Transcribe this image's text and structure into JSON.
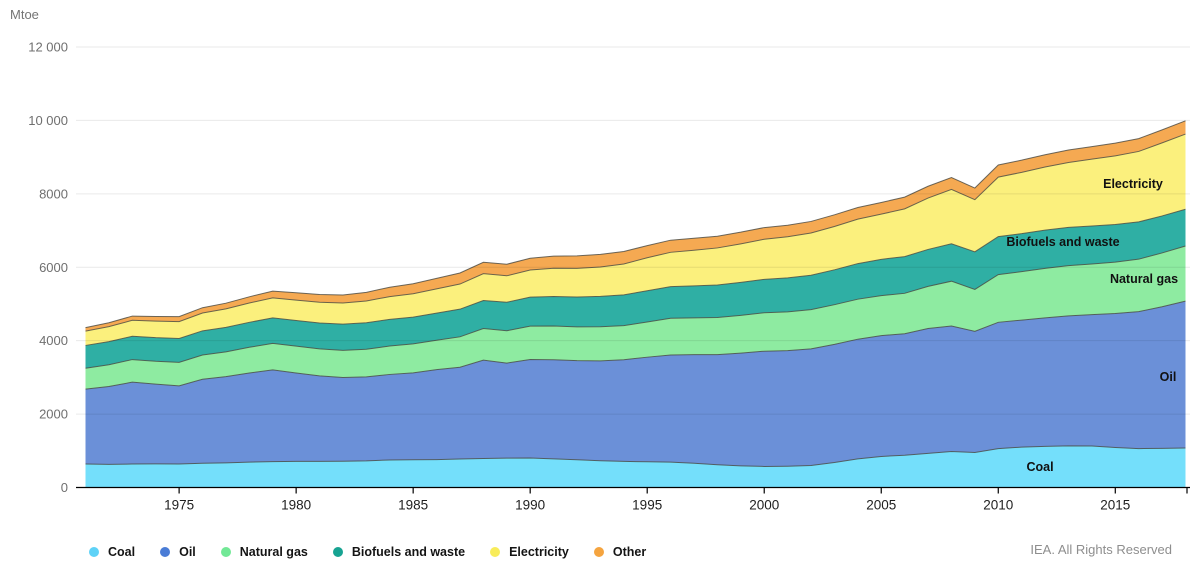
{
  "page": {
    "unit_label": "Mtoe",
    "copyright": "IEA. All Rights Reserved"
  },
  "legend": {
    "items": [
      {
        "label": "Coal",
        "color": "#5ED2F7"
      },
      {
        "label": "Oil",
        "color": "#4A7CD6"
      },
      {
        "label": "Natural gas",
        "color": "#72E896"
      },
      {
        "label": "Biofuels and waste",
        "color": "#17A392"
      },
      {
        "label": "Electricity",
        "color": "#F8EC5A"
      },
      {
        "label": "Other",
        "color": "#F5A43F"
      }
    ]
  },
  "chart_data": {
    "type": "area",
    "stacked": true,
    "title": "",
    "xlabel": "",
    "ylabel": "Mtoe",
    "ylim": [
      0,
      12000
    ],
    "grid": "horizontal",
    "legend_position": "bottom",
    "yticks": [
      0,
      2000,
      4000,
      6000,
      8000,
      10000,
      12000
    ],
    "ytick_labels": [
      "0",
      "2000",
      "4000",
      "6000",
      "8000",
      "10 000",
      "12 000"
    ],
    "xticks": [
      1975,
      1980,
      1985,
      1990,
      1995,
      2000,
      2005,
      2010,
      2015
    ],
    "x": [
      1971,
      1972,
      1973,
      1974,
      1975,
      1976,
      1977,
      1978,
      1979,
      1980,
      1981,
      1982,
      1983,
      1984,
      1985,
      1986,
      1987,
      1988,
      1989,
      1990,
      1991,
      1992,
      1993,
      1994,
      1995,
      1996,
      1997,
      1998,
      1999,
      2000,
      2001,
      2002,
      2003,
      2004,
      2005,
      2006,
      2007,
      2008,
      2009,
      2010,
      2011,
      2012,
      2013,
      2014,
      2015,
      2016,
      2017,
      2018
    ],
    "series": [
      {
        "name": "Coal",
        "color": "#74DFFB",
        "values": [
          640,
          630,
          640,
          645,
          640,
          660,
          670,
          690,
          705,
          710,
          710,
          715,
          725,
          750,
          756,
          760,
          775,
          790,
          800,
          802,
          780,
          755,
          730,
          710,
          700,
          690,
          660,
          620,
          590,
          573,
          580,
          600,
          680,
          780,
          846,
          880,
          930,
          980,
          955,
          1060,
          1100,
          1120,
          1135,
          1130,
          1090,
          1060,
          1065,
          1076
        ]
      },
      {
        "name": "Oil",
        "color": "#6B90D8",
        "values": [
          2040,
          2120,
          2230,
          2170,
          2130,
          2290,
          2350,
          2430,
          2500,
          2410,
          2330,
          2280,
          2290,
          2330,
          2366,
          2450,
          2500,
          2680,
          2590,
          2684,
          2700,
          2700,
          2720,
          2770,
          2850,
          2920,
          2960,
          3000,
          3070,
          3140,
          3150,
          3175,
          3220,
          3260,
          3290,
          3310,
          3400,
          3420,
          3300,
          3440,
          3460,
          3500,
          3540,
          3580,
          3650,
          3730,
          3860,
          4002
        ]
      },
      {
        "name": "Natural gas",
        "color": "#8EEBA1",
        "values": [
          570,
          595,
          615,
          625,
          640,
          660,
          675,
          700,
          720,
          730,
          735,
          740,
          750,
          775,
          790,
          800,
          830,
          860,
          880,
          909,
          920,
          920,
          930,
          930,
          960,
          1000,
          1000,
          1010,
          1030,
          1048,
          1055,
          1070,
          1080,
          1090,
          1090,
          1100,
          1150,
          1220,
          1140,
          1300,
          1320,
          1350,
          1370,
          1380,
          1400,
          1430,
          1465,
          1501
        ]
      },
      {
        "name": "Biofuels and waste",
        "color": "#2FAFA4",
        "values": [
          620,
          628,
          635,
          642,
          650,
          658,
          666,
          680,
          695,
          700,
          707,
          715,
          722,
          726,
          729,
          741,
          753,
          765,
          777,
          790,
          802,
          814,
          826,
          838,
          850,
          862,
          874,
          886,
          898,
          910,
          925,
          938,
          950,
          970,
          990,
          1000,
          1005,
          1020,
          1025,
          1035,
          1035,
          1040,
          1040,
          1035,
          1025,
          1015,
          1008,
          1002
        ]
      },
      {
        "name": "Electricity",
        "color": "#FBF07D",
        "values": [
          390,
          410,
          435,
          450,
          460,
          485,
          505,
          525,
          545,
          555,
          565,
          575,
          595,
          620,
          636,
          660,
          685,
          730,
          720,
          740,
          770,
          780,
          800,
          840,
          900,
          935,
          970,
          1010,
          1050,
          1092,
          1120,
          1150,
          1180,
          1210,
          1230,
          1300,
          1400,
          1480,
          1420,
          1620,
          1670,
          1720,
          1770,
          1820,
          1870,
          1920,
          1990,
          2048
        ]
      },
      {
        "name": "Other",
        "color": "#F5A952",
        "values": [
          95,
          105,
          115,
          125,
          135,
          145,
          155,
          170,
          185,
          200,
          210,
          220,
          235,
          255,
          273,
          285,
          300,
          310,
          315,
          320,
          330,
          340,
          345,
          340,
          330,
          330,
          325,
          320,
          318,
          318,
          315,
          315,
          318,
          318,
          319,
          320,
          322,
          325,
          318,
          330,
          332,
          335,
          338,
          340,
          345,
          350,
          355,
          361
        ]
      }
    ],
    "inline_labels": [
      {
        "text": "Electricity"
      },
      {
        "text": "Biofuels and waste"
      },
      {
        "text": "Natural gas"
      },
      {
        "text": "Oil"
      },
      {
        "text": "Coal"
      }
    ],
    "style": {
      "boundary_stroke": "#474740",
      "gridline_rgba": "rgba(0,0,0,0.085)",
      "axis_color": "#000000",
      "ytick_color": "#6f6f6f",
      "xtick_color": "#1f1f1f"
    }
  }
}
